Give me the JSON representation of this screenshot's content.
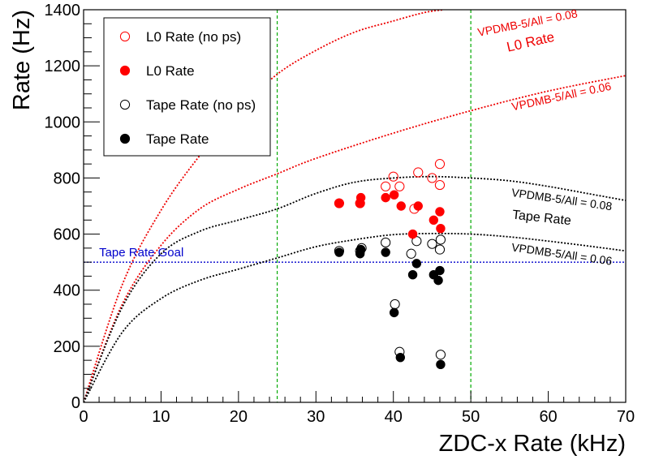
{
  "chart_data": {
    "type": "scatter",
    "title": "",
    "xlabel": "ZDC-x Rate (kHz)",
    "ylabel": "Rate (Hz)",
    "xlim": [
      0,
      70
    ],
    "ylim": [
      0,
      1400
    ],
    "x_ticks": [
      0,
      10,
      20,
      30,
      40,
      50,
      60,
      70
    ],
    "y_ticks": [
      0,
      200,
      400,
      600,
      800,
      1000,
      1200,
      1400
    ],
    "grid": false,
    "legend_position": "top-left",
    "legend": [
      {
        "label": "L0 Rate (no ps)",
        "marker": "open-circle",
        "color": "#ff0000"
      },
      {
        "label": "L0 Rate",
        "marker": "filled-circle",
        "color": "#ff0000"
      },
      {
        "label": "Tape Rate (no ps)",
        "marker": "open-circle",
        "color": "#000000"
      },
      {
        "label": "Tape Rate",
        "marker": "filled-circle",
        "color": "#000000"
      }
    ],
    "series": [
      {
        "name": "L0 Rate (no ps)",
        "marker": "open",
        "color": "#ff0000",
        "points": [
          [
            33,
            710
          ],
          [
            35.7,
            710
          ],
          [
            39,
            770
          ],
          [
            40,
            805
          ],
          [
            40.8,
            770
          ],
          [
            42.7,
            690
          ],
          [
            43.2,
            820
          ],
          [
            45,
            800
          ],
          [
            46,
            850
          ],
          [
            46,
            775
          ]
        ]
      },
      {
        "name": "L0 Rate",
        "marker": "filled",
        "color": "#ff0000",
        "points": [
          [
            33,
            710
          ],
          [
            35.7,
            710
          ],
          [
            35.8,
            730
          ],
          [
            39,
            730
          ],
          [
            40.1,
            740
          ],
          [
            41,
            700
          ],
          [
            42.5,
            600
          ],
          [
            43.2,
            700
          ],
          [
            45.2,
            650
          ],
          [
            46,
            680
          ],
          [
            46.1,
            620
          ]
        ]
      },
      {
        "name": "Tape Rate (no ps)",
        "marker": "open",
        "color": "#000000",
        "points": [
          [
            33,
            540
          ],
          [
            35.7,
            540
          ],
          [
            35.9,
            550
          ],
          [
            39,
            570
          ],
          [
            40.2,
            350
          ],
          [
            40.8,
            180
          ],
          [
            42.3,
            530
          ],
          [
            43,
            575
          ],
          [
            45,
            565
          ],
          [
            46,
            545
          ],
          [
            46.1,
            580
          ],
          [
            46.1,
            170
          ]
        ]
      },
      {
        "name": "Tape Rate",
        "marker": "filled",
        "color": "#000000",
        "points": [
          [
            33,
            535
          ],
          [
            35.7,
            530
          ],
          [
            35.8,
            545
          ],
          [
            39,
            535
          ],
          [
            40.1,
            320
          ],
          [
            40.9,
            160
          ],
          [
            42.5,
            455
          ],
          [
            43,
            495
          ],
          [
            45.2,
            455
          ],
          [
            45.8,
            435
          ],
          [
            46,
            470
          ],
          [
            46.1,
            135
          ]
        ]
      }
    ],
    "curves": [
      {
        "name": "L0 Rate VPDMB-5/All = 0.08",
        "color": "#ee0000",
        "style": "dotted",
        "points": [
          [
            0,
            0
          ],
          [
            5,
            420
          ],
          [
            10,
            685
          ],
          [
            15,
            880
          ],
          [
            20,
            1040
          ],
          [
            25,
            1170
          ],
          [
            30,
            1255
          ],
          [
            35,
            1320
          ],
          [
            40,
            1360
          ],
          [
            44,
            1390
          ],
          [
            46.5,
            1400
          ]
        ]
      },
      {
        "name": "L0 Rate VPDMB-5/All = 0.06",
        "color": "#ee0000",
        "style": "dotted",
        "points": [
          [
            0,
            0
          ],
          [
            5,
            350
          ],
          [
            10,
            560
          ],
          [
            15,
            690
          ],
          [
            20,
            760
          ],
          [
            25,
            815
          ],
          [
            30,
            870
          ],
          [
            40,
            960
          ],
          [
            50,
            1040
          ],
          [
            60,
            1110
          ],
          [
            70,
            1165
          ]
        ]
      },
      {
        "name": "Tape Rate VPDMB-5/All = 0.08",
        "color": "#000000",
        "style": "dotted",
        "points": [
          [
            0,
            0
          ],
          [
            5,
            340
          ],
          [
            10,
            530
          ],
          [
            15,
            610
          ],
          [
            20,
            650
          ],
          [
            25,
            690
          ],
          [
            30,
            745
          ],
          [
            35,
            785
          ],
          [
            40,
            800
          ],
          [
            45,
            805
          ],
          [
            50,
            800
          ],
          [
            55,
            790
          ],
          [
            60,
            770
          ],
          [
            65,
            745
          ],
          [
            70,
            720
          ]
        ]
      },
      {
        "name": "Tape Rate VPDMB-5/All = 0.06",
        "color": "#000000",
        "style": "dotted",
        "points": [
          [
            0,
            0
          ],
          [
            5,
            250
          ],
          [
            10,
            370
          ],
          [
            15,
            435
          ],
          [
            20,
            475
          ],
          [
            25,
            515
          ],
          [
            30,
            555
          ],
          [
            35,
            580
          ],
          [
            40,
            598
          ],
          [
            45,
            602
          ],
          [
            50,
            600
          ],
          [
            55,
            590
          ],
          [
            60,
            575
          ],
          [
            65,
            558
          ],
          [
            70,
            540
          ]
        ]
      }
    ],
    "reference_lines": [
      {
        "orientation": "horizontal",
        "value": 500,
        "color": "#0000cc",
        "style": "dotted",
        "label": "Tape Rate Goal"
      },
      {
        "orientation": "vertical",
        "value": 25,
        "color": "#00aa00",
        "style": "dashed"
      },
      {
        "orientation": "vertical",
        "value": 50,
        "color": "#00aa00",
        "style": "dashed"
      }
    ],
    "annotations": [
      {
        "text": "VPDMB-5/All = 0.08",
        "color": "#ee0000",
        "x": 51,
        "y": 1305,
        "rotate": -11,
        "size": 14
      },
      {
        "text": "L0 Rate",
        "color": "#ee0000",
        "x": 54.8,
        "y": 1250,
        "rotate": -13,
        "size": 17
      },
      {
        "text": "VPDMB-5/All = 0.06",
        "color": "#ee0000",
        "x": 55.4,
        "y": 1040,
        "rotate": -12,
        "size": 14
      },
      {
        "text": "VPDMB-5/All = 0.08",
        "color": "#000000",
        "x": 55.2,
        "y": 735,
        "rotate": 8,
        "size": 14
      },
      {
        "text": "Tape Rate",
        "color": "#000000",
        "x": 55.3,
        "y": 655,
        "rotate": 6,
        "size": 16
      },
      {
        "text": "VPDMB-5/All = 0.06",
        "color": "#000000",
        "x": 55.2,
        "y": 540,
        "rotate": 8,
        "size": 14
      },
      {
        "text": "Tape Rate Goal",
        "color": "#0000cc",
        "x": 2,
        "y": 520,
        "rotate": 0,
        "size": 15
      }
    ]
  }
}
